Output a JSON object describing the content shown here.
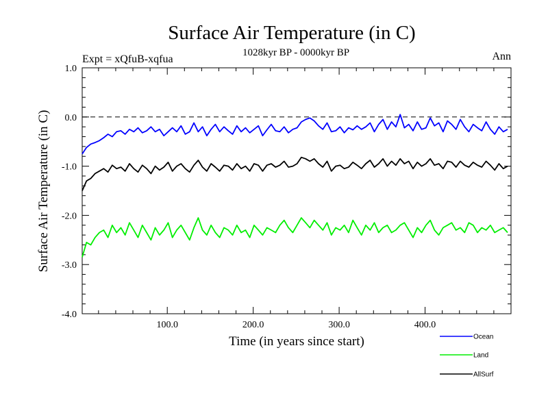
{
  "chart_data": {
    "type": "line",
    "title": "Surface Air Temperature (in C)",
    "subtitle": "1028kyr BP - 0000kyr BP",
    "left_label": "Expt = xQfuB-xqfua",
    "right_label": "Ann",
    "xlabel": "Time (in years since start)",
    "ylabel": "Surface Air Temperature (in C)",
    "xlim": [
      1,
      500
    ],
    "ylim": [
      -4.0,
      1.0
    ],
    "x_ticks": [
      100,
      200,
      300,
      400
    ],
    "x_tick_labels": [
      "100.0",
      "200.0",
      "300.0",
      "400.0"
    ],
    "y_ticks": [
      1.0,
      0.0,
      -1.0,
      -2.0,
      -3.0,
      -4.0
    ],
    "y_tick_labels": [
      "1.0",
      "0.0",
      "-1.0",
      "-2.0",
      "-3.0",
      "-4.0"
    ],
    "reference_line": 0.0,
    "x_step": 5,
    "series": [
      {
        "name": "Ocean",
        "color": "#0000ff",
        "values": [
          -0.75,
          -0.62,
          -0.55,
          -0.52,
          -0.48,
          -0.42,
          -0.35,
          -0.4,
          -0.3,
          -0.28,
          -0.35,
          -0.25,
          -0.3,
          -0.22,
          -0.32,
          -0.28,
          -0.2,
          -0.3,
          -0.25,
          -0.38,
          -0.3,
          -0.22,
          -0.3,
          -0.18,
          -0.35,
          -0.3,
          -0.12,
          -0.3,
          -0.2,
          -0.38,
          -0.25,
          -0.15,
          -0.3,
          -0.2,
          -0.28,
          -0.35,
          -0.18,
          -0.3,
          -0.22,
          -0.32,
          -0.25,
          -0.18,
          -0.38,
          -0.26,
          -0.15,
          -0.28,
          -0.3,
          -0.2,
          -0.32,
          -0.25,
          -0.22,
          -0.1,
          -0.05,
          -0.02,
          -0.08,
          -0.18,
          -0.25,
          -0.12,
          -0.3,
          -0.28,
          -0.2,
          -0.32,
          -0.22,
          -0.26,
          -0.18,
          -0.25,
          -0.2,
          -0.12,
          -0.3,
          -0.15,
          -0.05,
          -0.25,
          -0.1,
          -0.2,
          0.05,
          -0.22,
          -0.15,
          -0.28,
          -0.1,
          -0.25,
          -0.22,
          -0.02,
          -0.18,
          -0.12,
          -0.3,
          -0.08,
          -0.15,
          -0.25,
          -0.05,
          -0.2,
          -0.3,
          -0.15,
          -0.22,
          -0.28,
          -0.1,
          -0.25,
          -0.35,
          -0.2,
          -0.3,
          -0.25
        ]
      },
      {
        "name": "Land",
        "color": "#00ee00",
        "values": [
          -2.85,
          -2.55,
          -2.6,
          -2.45,
          -2.35,
          -2.3,
          -2.45,
          -2.2,
          -2.35,
          -2.25,
          -2.4,
          -2.15,
          -2.3,
          -2.45,
          -2.2,
          -2.35,
          -2.5,
          -2.25,
          -2.4,
          -2.3,
          -2.15,
          -2.45,
          -2.3,
          -2.2,
          -2.35,
          -2.5,
          -2.25,
          -2.05,
          -2.3,
          -2.4,
          -2.2,
          -2.35,
          -2.45,
          -2.25,
          -2.3,
          -2.4,
          -2.2,
          -2.35,
          -2.3,
          -2.45,
          -2.2,
          -2.3,
          -2.4,
          -2.25,
          -2.3,
          -2.35,
          -2.2,
          -2.1,
          -2.25,
          -2.35,
          -2.2,
          -2.05,
          -2.15,
          -2.25,
          -2.1,
          -2.2,
          -2.3,
          -2.15,
          -2.4,
          -2.25,
          -2.3,
          -2.2,
          -2.35,
          -2.1,
          -2.25,
          -2.4,
          -2.2,
          -2.3,
          -2.15,
          -2.35,
          -2.25,
          -2.2,
          -2.35,
          -2.3,
          -2.2,
          -2.15,
          -2.3,
          -2.45,
          -2.25,
          -2.35,
          -2.2,
          -2.1,
          -2.3,
          -2.4,
          -2.25,
          -2.2,
          -2.15,
          -2.3,
          -2.25,
          -2.35,
          -2.15,
          -2.2,
          -2.35,
          -2.25,
          -2.3,
          -2.2,
          -2.35,
          -2.3,
          -2.25,
          -2.35
        ]
      },
      {
        "name": "AllSurf",
        "color": "#000000",
        "values": [
          -1.5,
          -1.3,
          -1.25,
          -1.15,
          -1.1,
          -1.05,
          -1.12,
          -0.98,
          -1.05,
          -1.02,
          -1.1,
          -0.95,
          -1.05,
          -1.12,
          -0.98,
          -1.05,
          -1.15,
          -1.0,
          -1.08,
          -1.02,
          -0.92,
          -1.1,
          -1.0,
          -0.95,
          -1.05,
          -1.12,
          -0.98,
          -0.88,
          -1.02,
          -1.1,
          -0.95,
          -1.02,
          -1.1,
          -0.98,
          -1.0,
          -1.08,
          -0.95,
          -1.05,
          -1.0,
          -1.1,
          -0.95,
          -0.98,
          -1.1,
          -0.98,
          -0.95,
          -1.02,
          -0.98,
          -0.9,
          -1.02,
          -1.0,
          -0.95,
          -0.82,
          -0.85,
          -0.9,
          -0.85,
          -0.95,
          -1.02,
          -0.9,
          -1.1,
          -1.0,
          -0.98,
          -1.05,
          -1.02,
          -0.92,
          -0.98,
          -1.05,
          -0.95,
          -0.88,
          -1.02,
          -0.95,
          -0.85,
          -1.0,
          -0.9,
          -0.98,
          -0.85,
          -0.95,
          -0.9,
          -1.05,
          -0.92,
          -1.0,
          -0.95,
          -0.85,
          -0.98,
          -0.95,
          -1.05,
          -0.9,
          -0.92,
          -1.02,
          -0.9,
          -0.98,
          -1.02,
          -0.92,
          -0.98,
          -1.02,
          -0.9,
          -0.98,
          -1.08,
          -0.95,
          -1.05,
          -1.0
        ]
      }
    ]
  }
}
